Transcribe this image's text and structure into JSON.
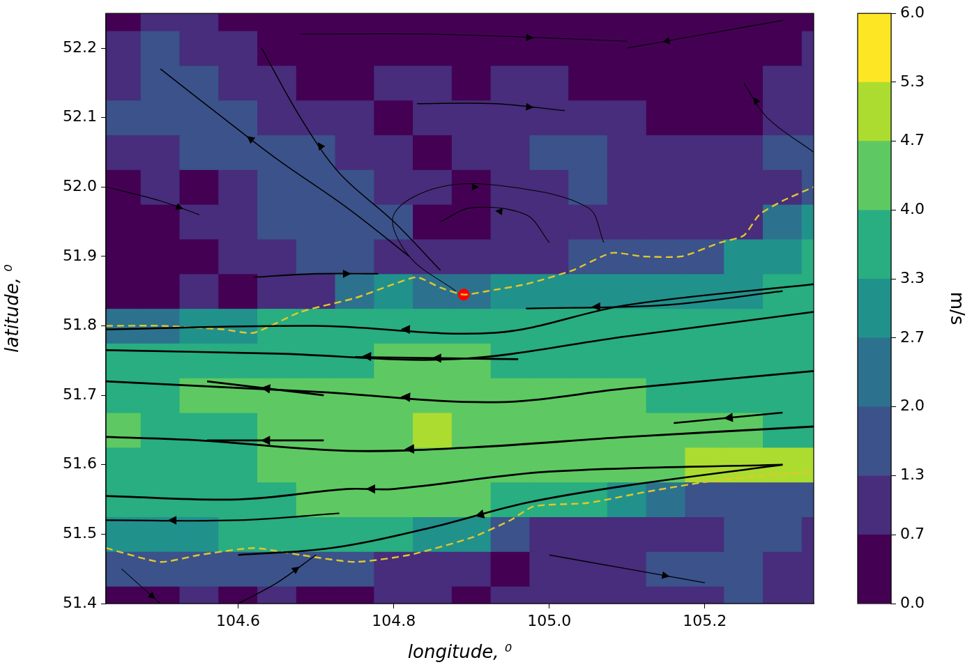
{
  "chart_data": {
    "type": "contour",
    "xlabel": "longitude, ⁰",
    "ylabel": "latitude, ⁰",
    "xlim": [
      104.43,
      105.34
    ],
    "ylim": [
      51.4,
      52.25
    ],
    "xticks": [
      104.6,
      104.8,
      {
        "value": 105,
        "label": "105.0"
      },
      105.2
    ],
    "yticks": [
      51.4,
      51.5,
      51.6,
      51.7,
      51.8,
      51.9,
      {
        "value": 52,
        "label": "52.0"
      },
      52.1,
      52.2
    ],
    "grid": false,
    "colorbar": {
      "label": "m/s",
      "ylim": [
        0,
        6
      ],
      "levels": [
        0,
        0.7,
        1.3,
        2.0,
        2.7,
        3.3,
        4.0,
        4.7,
        5.3,
        6.0
      ],
      "colors": [
        "#440154",
        "#472d7b",
        "#3b528b",
        "#2c728e",
        "#21918c",
        "#28ae80",
        "#5ec962",
        "#addc30",
        "#fde725"
      ],
      "yticks": [
        {
          "value": 0,
          "label": "0.0"
        },
        0.7,
        1.3,
        {
          "value": 2,
          "label": "2.0"
        },
        2.7,
        3.3,
        {
          "value": 4,
          "label": "4.0"
        },
        4.7,
        5.3,
        {
          "value": 6,
          "label": "6.0"
        }
      ]
    },
    "field": {
      "x": [
        104.45,
        104.5,
        104.55,
        104.6,
        104.65,
        104.7,
        104.75,
        104.8,
        104.85,
        104.9,
        104.95,
        105.0,
        105.05,
        105.1,
        105.15,
        105.2,
        105.25,
        105.3,
        105.35
      ],
      "y": [
        51.4,
        51.45,
        51.5,
        51.55,
        51.6,
        51.65,
        51.7,
        51.75,
        51.8,
        51.85,
        51.9,
        51.95,
        52.0,
        52.05,
        52.1,
        52.15,
        52.2,
        52.25
      ],
      "values": [
        [
          0.6,
          0.5,
          0.7,
          0.6,
          0.8,
          0.6,
          0.5,
          0.7,
          0.8,
          0.6,
          0.7,
          0.9,
          0.8,
          0.7,
          1.0,
          1.2,
          1.4,
          1.1,
          0.9
        ],
        [
          1.4,
          1.3,
          1.5,
          1.6,
          1.5,
          1.4,
          1.3,
          1.2,
          0.9,
          0.7,
          0.6,
          0.8,
          0.9,
          1.0,
          1.3,
          1.5,
          1.8,
          1.2,
          1.0
        ],
        [
          2.9,
          3.1,
          3.2,
          3.3,
          3.4,
          3.5,
          3.6,
          3.4,
          3.2,
          3.0,
          1.8,
          1.0,
          0.8,
          0.9,
          1.0,
          1.2,
          1.4,
          1.3,
          1.0
        ],
        [
          3.4,
          3.5,
          3.6,
          3.7,
          3.9,
          4.1,
          4.2,
          4.3,
          4.2,
          4.0,
          3.8,
          3.6,
          3.4,
          3.0,
          2.5,
          1.6,
          1.4,
          1.3,
          1.4
        ],
        [
          3.6,
          3.7,
          3.8,
          3.9,
          4.1,
          4.3,
          4.5,
          4.6,
          4.5,
          4.4,
          4.3,
          4.2,
          4.3,
          4.4,
          4.6,
          4.8,
          5.0,
          5.1,
          4.9
        ],
        [
          4.1,
          3.9,
          3.8,
          3.9,
          4.1,
          4.4,
          4.5,
          4.6,
          4.7,
          4.5,
          4.4,
          4.5,
          4.4,
          4.3,
          4.2,
          4.1,
          4.0,
          3.9,
          3.8
        ],
        [
          3.8,
          3.9,
          4.0,
          4.1,
          4.2,
          4.3,
          4.4,
          4.3,
          4.2,
          4.3,
          4.2,
          4.1,
          4.1,
          4.0,
          3.9,
          3.8,
          3.7,
          3.6,
          3.5
        ],
        [
          3.7,
          3.8,
          3.9,
          3.8,
          3.7,
          3.8,
          3.9,
          4.0,
          4.1,
          4.0,
          3.8,
          3.7,
          3.6,
          3.6,
          3.5,
          3.5,
          3.4,
          3.5,
          3.4
        ],
        [
          2.2,
          2.6,
          3.0,
          3.2,
          3.4,
          3.5,
          3.6,
          3.7,
          3.8,
          3.7,
          3.6,
          3.5,
          3.5,
          3.4,
          3.4,
          3.3,
          3.4,
          3.5,
          3.6
        ],
        [
          0.5,
          0.4,
          0.8,
          0.6,
          0.9,
          1.2,
          2.4,
          3.0,
          2.6,
          2.4,
          2.9,
          3.0,
          3.1,
          3.0,
          3.0,
          3.1,
          3.2,
          3.4,
          3.5
        ],
        [
          0.4,
          0.6,
          0.3,
          0.9,
          1.1,
          1.3,
          1.4,
          1.0,
          0.8,
          0.7,
          1.0,
          1.2,
          1.6,
          1.3,
          1.5,
          1.9,
          2.8,
          3.1,
          3.3
        ],
        [
          0.5,
          0.3,
          0.7,
          1.0,
          1.4,
          1.5,
          1.6,
          1.3,
          0.6,
          0.5,
          0.7,
          0.9,
          1.1,
          1.2,
          1.0,
          0.9,
          1.1,
          2.4,
          2.8
        ],
        [
          0.4,
          0.8,
          0.6,
          1.2,
          1.5,
          1.6,
          1.4,
          1.0,
          0.7,
          0.5,
          0.8,
          1.2,
          1.3,
          1.1,
          0.9,
          0.7,
          0.8,
          1.0,
          1.6
        ],
        [
          0.9,
          1.0,
          1.3,
          1.6,
          1.5,
          1.4,
          1.2,
          0.9,
          0.6,
          0.8,
          1.1,
          1.3,
          1.4,
          1.2,
          1.0,
          0.8,
          0.7,
          1.3,
          1.5
        ],
        [
          1.3,
          1.4,
          1.5,
          1.4,
          1.2,
          1.0,
          0.8,
          0.6,
          0.9,
          1.0,
          1.2,
          1.1,
          0.9,
          0.7,
          0.6,
          0.5,
          0.6,
          1.0,
          1.2
        ],
        [
          1.2,
          1.5,
          1.6,
          1.2,
          0.8,
          0.5,
          0.4,
          0.7,
          0.8,
          0.6,
          0.7,
          0.9,
          0.6,
          0.4,
          0.5,
          0.3,
          0.6,
          0.8,
          0.9
        ],
        [
          0.8,
          1.4,
          1.2,
          0.7,
          0.5,
          0.3,
          0.6,
          0.5,
          0.4,
          0.3,
          0.6,
          0.5,
          0.4,
          0.3,
          0.5,
          0.4,
          0.3,
          0.6,
          0.7
        ],
        [
          0.5,
          0.9,
          0.8,
          0.6,
          0.4,
          0.3,
          0.5,
          0.4,
          0.3,
          0.4,
          0.5,
          0.3,
          0.4,
          0.5,
          0.3,
          0.4,
          0.5,
          0.4,
          0.6
        ]
      ]
    },
    "streamlines": {
      "color": "#000000",
      "line_style": "solid",
      "lines": [
        [
          [
            105.34,
            51.86
          ],
          [
            105.1,
            51.83
          ],
          [
            104.93,
            51.79
          ],
          [
            104.7,
            51.8
          ],
          [
            104.43,
            51.795
          ]
        ],
        [
          [
            105.34,
            51.82
          ],
          [
            105.1,
            51.785
          ],
          [
            104.88,
            51.752
          ],
          [
            104.65,
            51.76
          ],
          [
            104.43,
            51.765
          ]
        ],
        [
          [
            105.34,
            51.735
          ],
          [
            105.1,
            51.71
          ],
          [
            104.93,
            51.69
          ],
          [
            104.7,
            51.705
          ],
          [
            104.43,
            51.72
          ]
        ],
        [
          [
            105.34,
            51.655
          ],
          [
            105.1,
            51.64
          ],
          [
            104.9,
            51.625
          ],
          [
            104.74,
            51.62
          ],
          [
            104.55,
            51.635
          ],
          [
            104.43,
            51.64
          ]
        ],
        [
          [
            105.3,
            51.6
          ],
          [
            105.0,
            51.59
          ],
          [
            104.8,
            51.565
          ],
          [
            104.74,
            51.565
          ],
          [
            104.6,
            51.55
          ],
          [
            104.43,
            51.555
          ]
        ],
        [
          [
            105.3,
            51.6
          ],
          [
            105.1,
            51.57
          ],
          [
            104.97,
            51.545
          ],
          [
            104.85,
            51.51
          ],
          [
            104.72,
            51.48
          ],
          [
            104.6,
            51.47
          ]
        ],
        [
          [
            104.73,
            51.53
          ],
          [
            104.6,
            51.52
          ],
          [
            104.43,
            51.52
          ]
        ],
        [
          [
            104.71,
            51.7
          ],
          [
            104.56,
            51.72
          ]
        ],
        [
          [
            104.71,
            51.635
          ],
          [
            104.56,
            51.635
          ]
        ],
        [
          [
            105.3,
            51.675
          ],
          [
            105.16,
            51.66
          ]
        ],
        [
          [
            104.96,
            51.752
          ],
          [
            104.75,
            51.755
          ]
        ],
        [
          [
            105.3,
            51.85
          ],
          [
            105.15,
            51.83
          ],
          [
            104.97,
            51.825
          ]
        ],
        [
          [
            104.88,
            51.85
          ],
          [
            104.82,
            51.9
          ],
          [
            104.8,
            51.96
          ],
          [
            104.86,
            52.0
          ],
          [
            104.95,
            52.0
          ],
          [
            105.05,
            51.97
          ],
          [
            105.07,
            51.92
          ]
        ],
        [
          [
            105.0,
            51.92
          ],
          [
            104.97,
            51.96
          ],
          [
            104.9,
            51.97
          ],
          [
            104.86,
            51.95
          ]
        ],
        [
          [
            104.82,
            51.9
          ],
          [
            104.74,
            51.97
          ],
          [
            104.65,
            52.04
          ],
          [
            104.58,
            52.1
          ],
          [
            104.5,
            52.17
          ]
        ],
        [
          [
            104.86,
            51.88
          ],
          [
            104.8,
            51.95
          ],
          [
            104.73,
            52.02
          ],
          [
            104.68,
            52.1
          ],
          [
            104.63,
            52.2
          ]
        ],
        [
          [
            104.83,
            52.12
          ],
          [
            104.93,
            52.12
          ],
          [
            105.02,
            52.11
          ]
        ],
        [
          [
            104.68,
            52.22
          ],
          [
            104.85,
            52.22
          ],
          [
            105.1,
            52.21
          ]
        ],
        [
          [
            104.43,
            52.0
          ],
          [
            104.5,
            51.98
          ],
          [
            104.55,
            51.96
          ]
        ],
        [
          [
            104.62,
            51.87
          ],
          [
            104.7,
            51.875
          ],
          [
            104.78,
            51.875
          ]
        ],
        [
          [
            104.6,
            51.4
          ],
          [
            104.65,
            51.43
          ],
          [
            104.7,
            51.47
          ]
        ],
        [
          [
            105.0,
            51.47
          ],
          [
            105.1,
            51.45
          ],
          [
            105.2,
            51.43
          ]
        ],
        [
          [
            104.45,
            51.45
          ],
          [
            104.48,
            51.42
          ],
          [
            104.5,
            51.4
          ]
        ],
        [
          [
            105.3,
            52.24
          ],
          [
            105.2,
            52.22
          ],
          [
            105.1,
            52.2
          ]
        ],
        [
          [
            105.34,
            52.05
          ],
          [
            105.28,
            52.1
          ],
          [
            105.25,
            52.15
          ]
        ]
      ]
    },
    "coastlines": {
      "color": "#e0c82a",
      "line_style": "dashed",
      "lines": [
        [
          [
            104.43,
            51.8
          ],
          [
            104.5,
            51.8
          ],
          [
            104.58,
            51.795
          ],
          [
            104.62,
            51.79
          ],
          [
            104.68,
            51.82
          ],
          [
            104.75,
            51.84
          ],
          [
            104.8,
            51.86
          ],
          [
            104.83,
            51.87
          ],
          [
            104.86,
            51.855
          ],
          [
            104.89,
            51.845
          ],
          [
            104.92,
            51.85
          ],
          [
            104.97,
            51.86
          ],
          [
            105.03,
            51.88
          ],
          [
            105.08,
            51.905
          ],
          [
            105.12,
            51.9
          ],
          [
            105.17,
            51.9
          ],
          [
            105.22,
            51.92
          ],
          [
            105.25,
            51.93
          ],
          [
            105.27,
            51.96
          ],
          [
            105.3,
            51.98
          ],
          [
            105.34,
            52.0
          ]
        ],
        [
          [
            104.43,
            51.48
          ],
          [
            104.5,
            51.46
          ],
          [
            104.55,
            51.47
          ],
          [
            104.62,
            51.48
          ],
          [
            104.68,
            51.47
          ],
          [
            104.75,
            51.46
          ],
          [
            104.82,
            51.47
          ],
          [
            104.9,
            51.495
          ],
          [
            104.95,
            51.52
          ],
          [
            104.98,
            51.54
          ],
          [
            105.05,
            51.545
          ],
          [
            105.12,
            51.56
          ],
          [
            105.2,
            51.575
          ],
          [
            105.28,
            51.585
          ],
          [
            105.34,
            51.59
          ]
        ]
      ]
    },
    "point": {
      "x": 104.89,
      "y": 51.845,
      "color": "#ff0000",
      "marker": "circle"
    }
  }
}
